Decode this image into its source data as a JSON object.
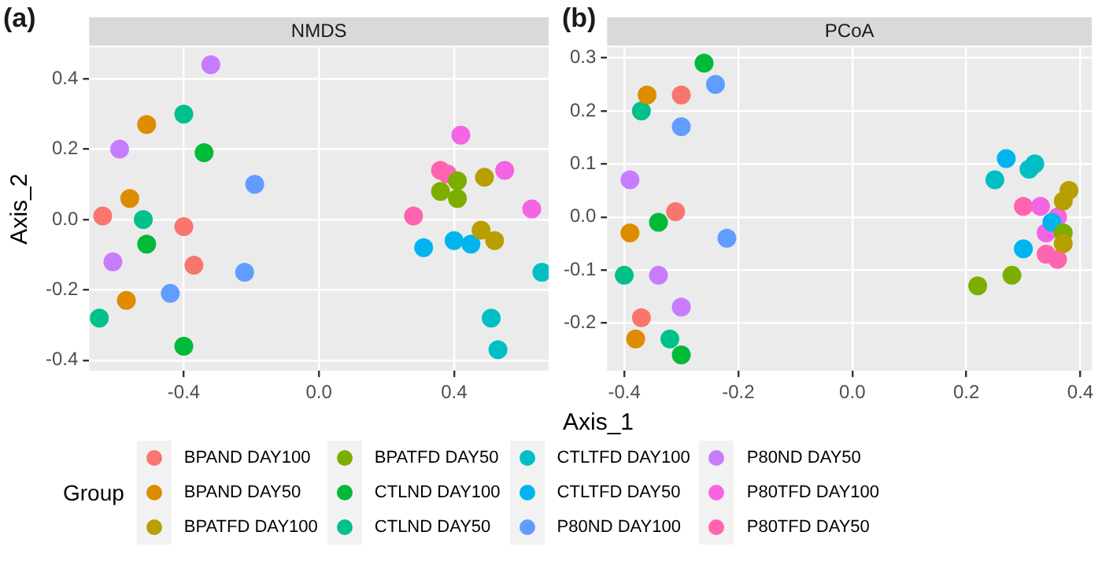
{
  "chart_data": [
    {
      "type": "scatter",
      "title": "NMDS",
      "annotations": [
        "(a)"
      ],
      "xlabel": "Axis_1",
      "ylabel": "Axis_2",
      "legend_title": "Group",
      "legend": "bottom",
      "grid": true,
      "marker": "circle",
      "xlim": [
        -0.68,
        0.68
      ],
      "ylim": [
        -0.43,
        0.49
      ],
      "xticks": [
        -0.4,
        {
          "value": 0,
          "label": "0.0"
        },
        0.4
      ],
      "yticks": [
        -0.4,
        -0.2,
        {
          "value": 0,
          "label": "0.0"
        },
        0.2,
        0.4
      ],
      "series": [
        {
          "name": "BPAND DAY100",
          "color": "#f8766d",
          "x": [
            -0.64,
            -0.4,
            -0.37
          ],
          "values": [
            0.01,
            -0.02,
            -0.13
          ]
        },
        {
          "name": "BPAND DAY50",
          "color": "#de8c00",
          "x": [
            -0.51,
            -0.56,
            -0.57
          ],
          "values": [
            0.27,
            0.06,
            -0.23
          ]
        },
        {
          "name": "BPATFD DAY100",
          "color": "#b79f00",
          "x": [
            0.49,
            0.48,
            0.52
          ],
          "values": [
            0.12,
            -0.03,
            -0.06
          ]
        },
        {
          "name": "BPATFD DAY50",
          "color": "#7cae00",
          "x": [
            0.36,
            0.41,
            0.41
          ],
          "values": [
            0.08,
            0.11,
            0.06
          ]
        },
        {
          "name": "CTLND DAY100",
          "color": "#00ba38",
          "x": [
            -0.34,
            -0.51,
            -0.4
          ],
          "values": [
            0.19,
            -0.07,
            -0.36
          ]
        },
        {
          "name": "CTLND DAY50",
          "color": "#00c08b",
          "x": [
            -0.4,
            -0.52,
            -0.65
          ],
          "values": [
            0.3,
            0.0,
            -0.28
          ]
        },
        {
          "name": "CTLTFD DAY100",
          "color": "#00bfc4",
          "x": [
            0.66,
            0.51,
            0.53
          ],
          "values": [
            -0.15,
            -0.28,
            -0.37
          ]
        },
        {
          "name": "CTLTFD DAY50",
          "color": "#00b4f0",
          "x": [
            0.31,
            0.4,
            0.45
          ],
          "values": [
            -0.08,
            -0.06,
            -0.07
          ]
        },
        {
          "name": "P80ND DAY100",
          "color": "#619cff",
          "x": [
            -0.19,
            -0.22,
            -0.44
          ],
          "values": [
            0.1,
            -0.15,
            -0.21
          ]
        },
        {
          "name": "P80ND DAY50",
          "color": "#c77cff",
          "x": [
            -0.32,
            -0.59,
            -0.61
          ],
          "values": [
            0.44,
            0.2,
            -0.12
          ]
        },
        {
          "name": "P80TFD DAY100",
          "color": "#f564e3",
          "x": [
            0.42,
            0.55,
            0.63
          ],
          "values": [
            0.24,
            0.14,
            0.03
          ]
        },
        {
          "name": "P80TFD DAY50",
          "color": "#ff64b0",
          "x": [
            0.36,
            0.38,
            0.28
          ],
          "values": [
            0.14,
            0.13,
            0.01
          ]
        }
      ]
    },
    {
      "type": "scatter",
      "title": "PCoA",
      "annotations": [
        "(b)"
      ],
      "grid": true,
      "marker": "circle",
      "xlim": [
        -0.43,
        0.42
      ],
      "ylim": [
        -0.29,
        0.32
      ],
      "xticks": [
        -0.4,
        -0.2,
        {
          "value": 0,
          "label": "0.0"
        },
        0.2,
        0.4
      ],
      "yticks": [
        -0.2,
        -0.1,
        {
          "value": 0,
          "label": "0.0"
        },
        0.1,
        0.2,
        0.3
      ],
      "series": [
        {
          "color": "#f8766d",
          "x": [
            -0.3,
            -0.31,
            -0.37
          ],
          "values": [
            0.23,
            0.01,
            -0.19
          ]
        },
        {
          "color": "#de8c00",
          "x": [
            -0.36,
            -0.39,
            -0.38
          ],
          "values": [
            0.23,
            -0.03,
            -0.23
          ]
        },
        {
          "color": "#b79f00",
          "x": [
            0.38,
            0.37,
            0.37
          ],
          "values": [
            0.05,
            0.03,
            -0.05
          ]
        },
        {
          "color": "#7cae00",
          "x": [
            0.22,
            0.28,
            0.37
          ],
          "values": [
            -0.13,
            -0.11,
            -0.03
          ]
        },
        {
          "color": "#00ba38",
          "x": [
            -0.26,
            -0.34,
            -0.3
          ],
          "values": [
            0.29,
            -0.01,
            -0.26
          ]
        },
        {
          "color": "#00c08b",
          "x": [
            -0.37,
            -0.4,
            -0.32
          ],
          "values": [
            0.2,
            -0.11,
            -0.23
          ]
        },
        {
          "color": "#00bfc4",
          "x": [
            0.25,
            0.31,
            0.32
          ],
          "values": [
            0.07,
            0.09,
            0.1
          ]
        },
        {
          "color": "#00b4f0",
          "x": [
            0.27,
            0.35,
            0.3
          ],
          "values": [
            0.11,
            -0.01,
            -0.06
          ]
        },
        {
          "color": "#619cff",
          "x": [
            -0.24,
            -0.3,
            -0.22
          ],
          "values": [
            0.25,
            0.17,
            -0.04
          ]
        },
        {
          "color": "#c77cff",
          "x": [
            -0.39,
            -0.34,
            -0.3
          ],
          "values": [
            0.07,
            -0.11,
            -0.17
          ]
        },
        {
          "color": "#f564e3",
          "x": [
            0.33,
            0.36,
            0.34
          ],
          "values": [
            0.02,
            0.0,
            -0.03
          ]
        },
        {
          "color": "#ff64b0",
          "x": [
            0.3,
            0.34,
            0.36
          ],
          "values": [
            0.02,
            -0.07,
            -0.08
          ]
        }
      ]
    }
  ]
}
